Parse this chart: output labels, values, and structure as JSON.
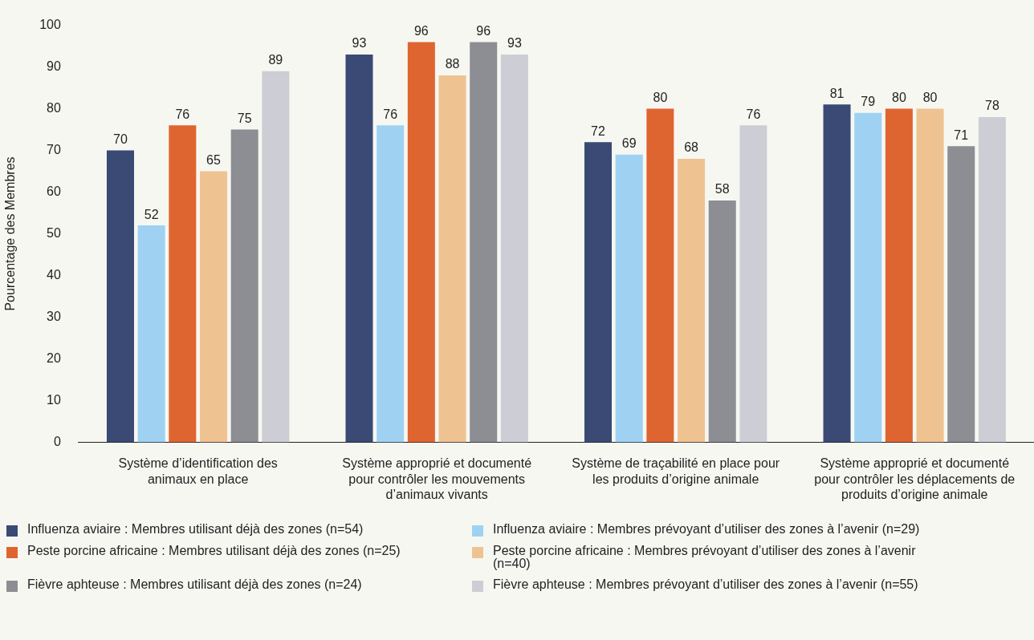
{
  "chart_data": {
    "type": "bar",
    "ylabel": "Pourcentage des Membres",
    "categories": [
      "Système d’identification des animaux en place",
      "Système approprié et documenté pour contrôler les mouvements d’animaux vivants",
      "Système de traçabilité en place pour les produits d’origine animale",
      "Système approprié et documenté pour contrôler les déplacements de produits d’origine animale"
    ],
    "series": [
      {
        "name": "Influenza aviaire : Membres utilisant déjà des zones (n=54)",
        "color": "#3a4a75",
        "values": [
          70,
          93,
          72,
          81
        ]
      },
      {
        "name": "Influenza aviaire : Membres prévoyant d’utiliser des zones à l’avenir (n=29)",
        "color": "#9fd2f2",
        "values": [
          52,
          76,
          69,
          79
        ]
      },
      {
        "name": "Peste porcine africaine : Membres utilisant déjà des zones (n=25)",
        "color": "#df6530",
        "values": [
          76,
          96,
          80,
          80
        ]
      },
      {
        "name": "Peste porcine africaine : Membres prévoyant d’utiliser des zones à l’avenir (n=40)",
        "color": "#efc391",
        "values": [
          65,
          88,
          68,
          80
        ]
      },
      {
        "name": "Fièvre aphteuse : Membres utilisant déjà des zones (n=24)",
        "color": "#8d8e93",
        "values": [
          75,
          96,
          58,
          71
        ]
      },
      {
        "name": "Fièvre aphteuse : Membres prévoyant d’utiliser des zones à l’avenir (n=55)",
        "color": "#cdcdd5",
        "values": [
          89,
          93,
          76,
          78
        ]
      }
    ],
    "ylim": [
      0,
      100
    ],
    "yticks": [
      0,
      10,
      20,
      30,
      40,
      50,
      60,
      70,
      80,
      90,
      100
    ],
    "grid": false,
    "data_labels": true,
    "legend": "bottom"
  }
}
